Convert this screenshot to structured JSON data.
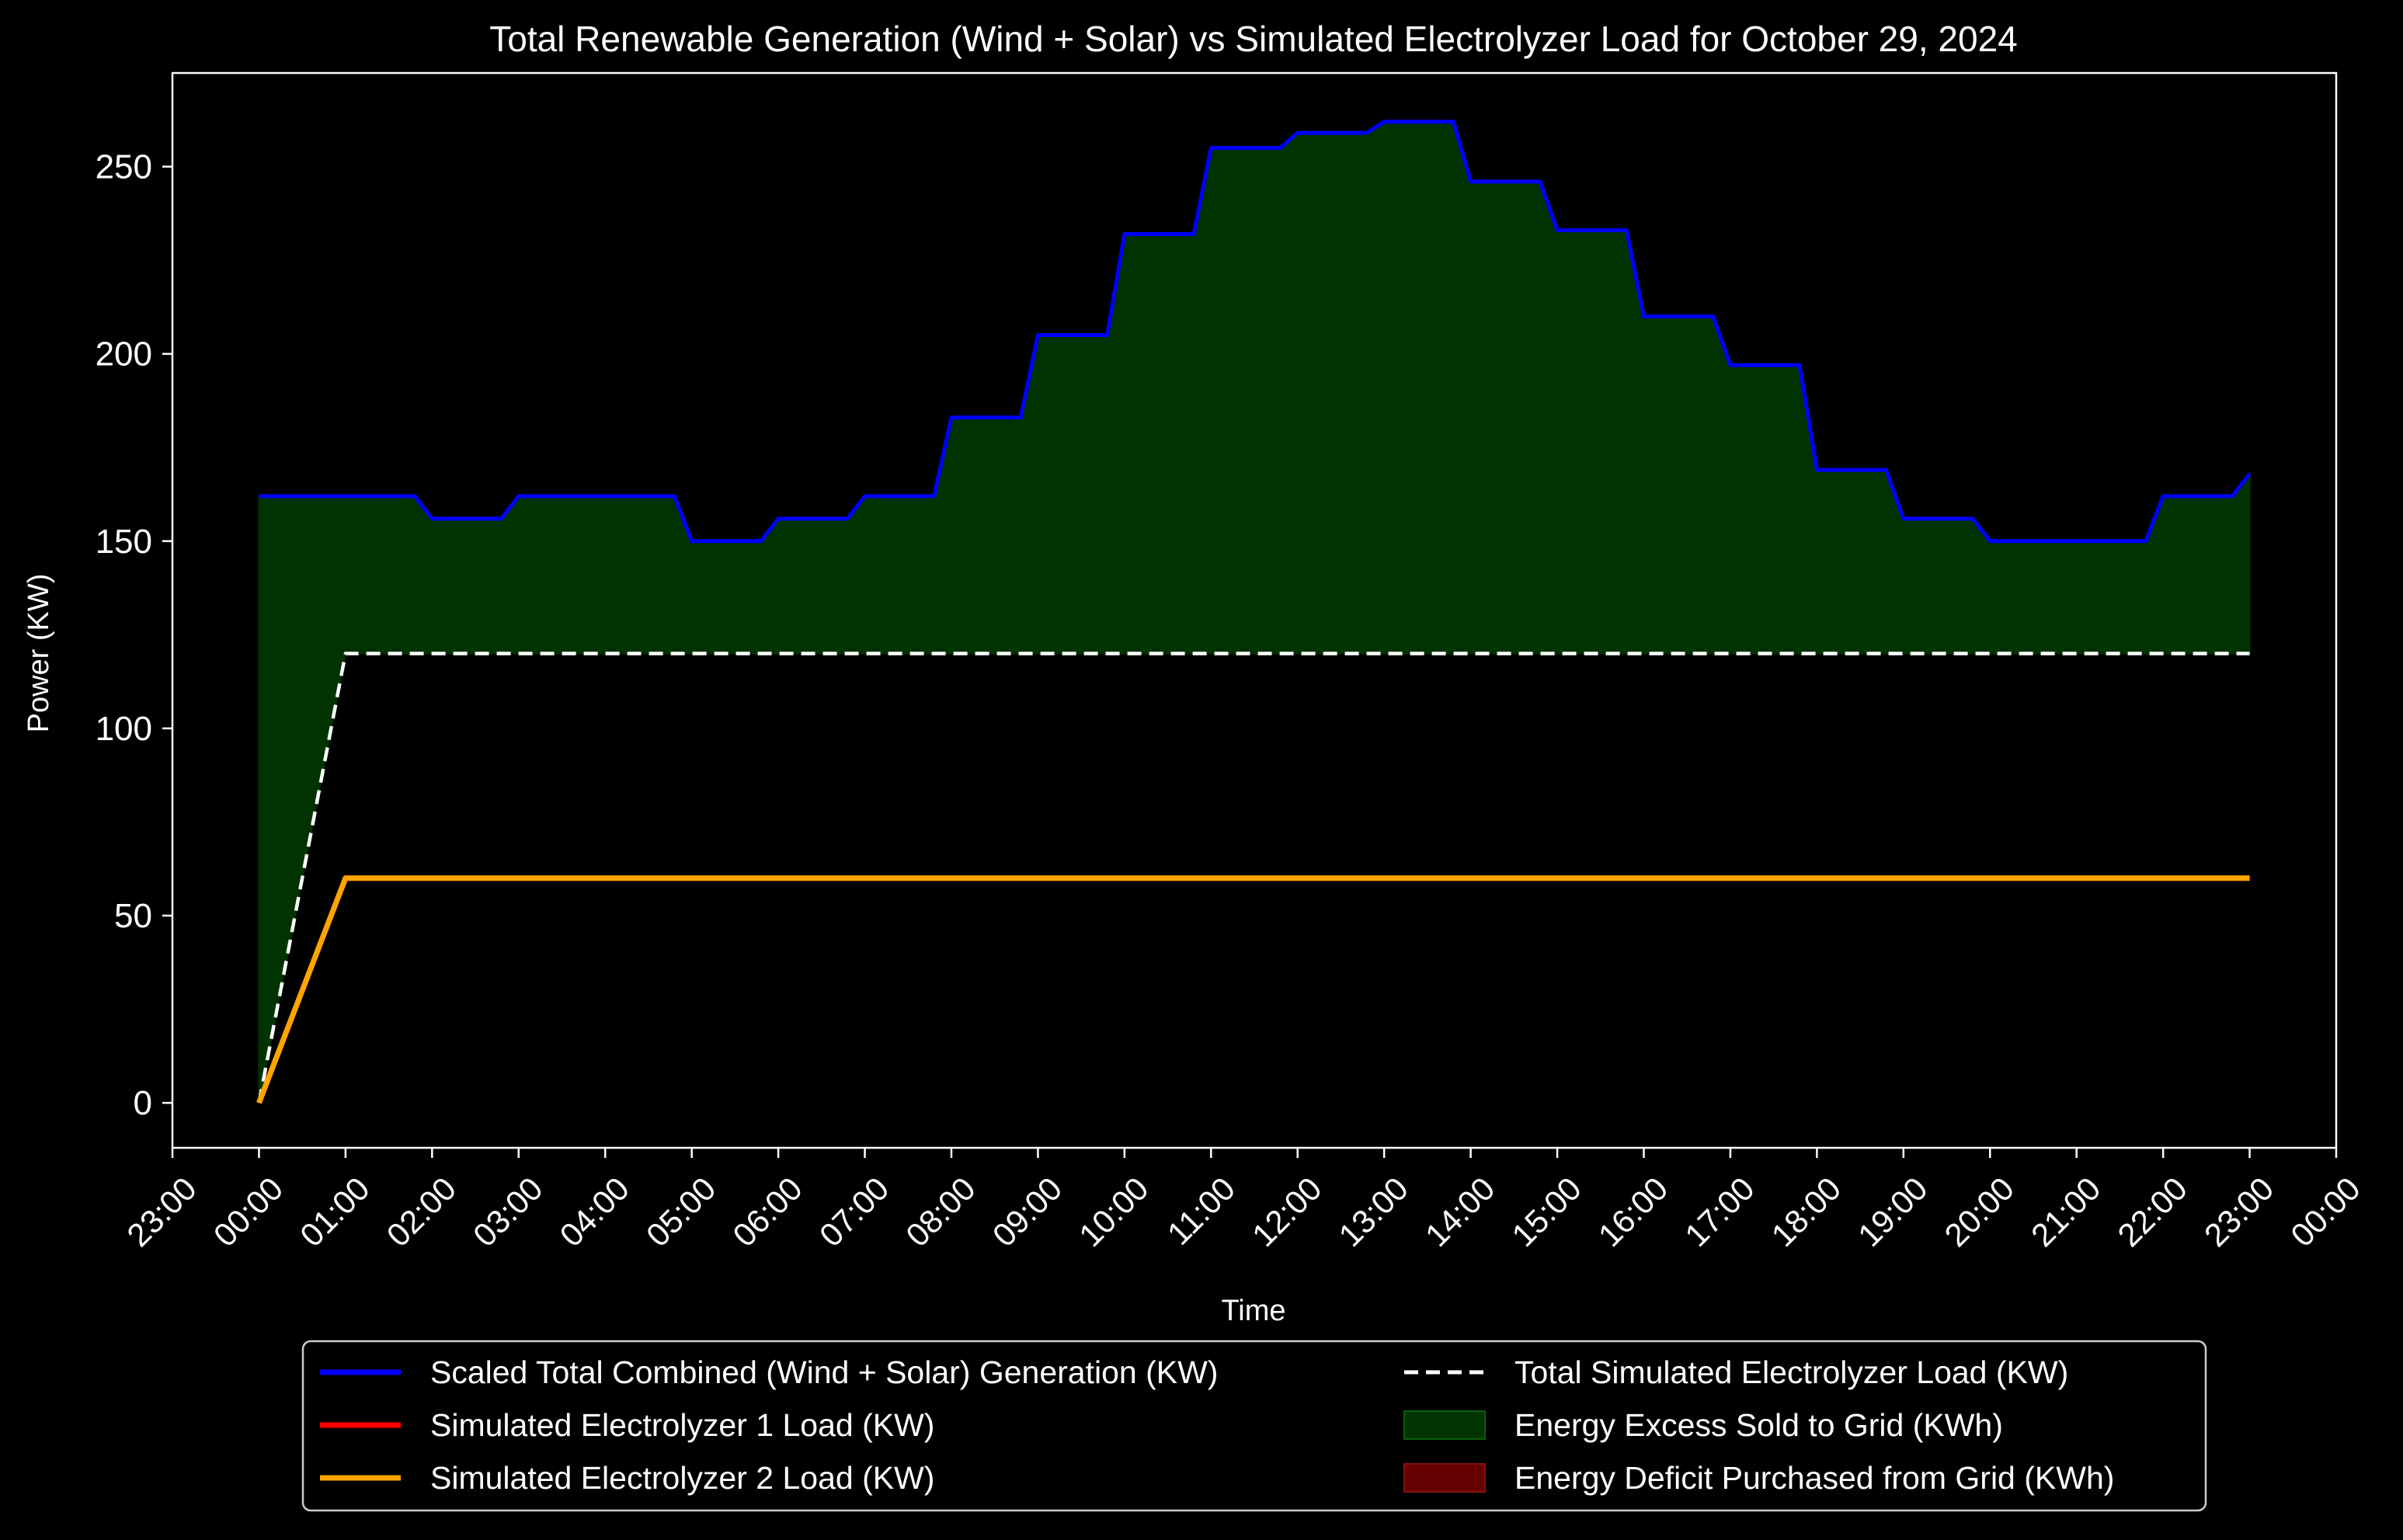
{
  "chart_data": {
    "type": "line",
    "title": "Total Renewable Generation (Wind + Solar) vs Simulated Electrolyzer Load for October 29, 2024",
    "xlabel": "Time",
    "ylabel": "Power (KW)",
    "x_unit": "hours",
    "xlim": [
      -1,
      24
    ],
    "ylim": [
      -12,
      275
    ],
    "x_ticks": [
      -1,
      0,
      1,
      2,
      3,
      4,
      5,
      6,
      7,
      8,
      9,
      10,
      11,
      12,
      13,
      14,
      15,
      16,
      17,
      18,
      19,
      20,
      21,
      22,
      23,
      24
    ],
    "x_tick_labels": [
      "23:00",
      "00:00",
      "01:00",
      "02:00",
      "03:00",
      "04:00",
      "05:00",
      "06:00",
      "07:00",
      "08:00",
      "09:00",
      "10:00",
      "11:00",
      "12:00",
      "13:00",
      "14:00",
      "15:00",
      "16:00",
      "17:00",
      "18:00",
      "19:00",
      "20:00",
      "21:00",
      "22:00",
      "23:00",
      "00:00"
    ],
    "y_ticks": [
      0,
      50,
      100,
      150,
      200,
      250
    ],
    "y_tick_labels": [
      "0",
      "50",
      "100",
      "150",
      "200",
      "250"
    ],
    "grid": false,
    "legend_position": "below",
    "background_color": "#000000",
    "series": [
      {
        "name": "Scaled Total Combined (Wind + Solar) Generation (KW)",
        "color": "#0000ff",
        "style": "solid",
        "x": [
          0,
          1.8,
          2,
          2.8,
          3,
          4.8,
          5,
          5.8,
          6,
          6.8,
          7,
          7.8,
          8,
          8.8,
          9,
          9.8,
          10,
          10.8,
          11,
          11.8,
          12,
          12.8,
          13,
          13.8,
          14,
          14.8,
          15,
          15.8,
          16,
          16.8,
          17,
          17.8,
          18,
          18.8,
          19,
          19.8,
          20,
          20.8,
          21,
          21.8,
          22,
          22.8,
          23
        ],
        "y": [
          162,
          162,
          156,
          156,
          162,
          162,
          150,
          150,
          156,
          156,
          162,
          162,
          183,
          183,
          205,
          205,
          232,
          232,
          255,
          255,
          259,
          259,
          262,
          262,
          246,
          246,
          233,
          233,
          210,
          210,
          197,
          197,
          169,
          169,
          156,
          156,
          150,
          150,
          150,
          150,
          162,
          162,
          168
        ]
      },
      {
        "name": "Total Simulated Electrolyzer Load (KW)",
        "color": "#ffffff",
        "style": "dashed",
        "x": [
          0,
          1,
          23
        ],
        "y": [
          0,
          120,
          120
        ]
      },
      {
        "name": "Simulated Electrolyzer 1 Load (KW)",
        "color": "#ff0000",
        "style": "solid",
        "x": [
          0,
          1,
          23
        ],
        "y": [
          0,
          60,
          60
        ]
      },
      {
        "name": "Simulated Electrolyzer 2 Load (KW)",
        "color": "#ffa500",
        "style": "solid",
        "x": [
          0,
          1,
          23
        ],
        "y": [
          0,
          60,
          60
        ]
      }
    ],
    "fills": [
      {
        "name": "Energy Excess Sold to Grid (KWh)",
        "color": "#003300",
        "between": [
          "Scaled Total Combined (Wind + Solar) Generation (KW)",
          "Total Simulated Electrolyzer Load (KW)"
        ]
      },
      {
        "name": "Energy Deficit Purchased from Grid (KWh)",
        "color": "#660000",
        "between": [
          "Total Simulated Electrolyzer Load (KW)",
          "Scaled Total Combined (Wind + Solar) Generation (KW)"
        ]
      }
    ],
    "legend": {
      "columns": 2,
      "entries": [
        {
          "label": "Scaled Total Combined (Wind + Solar) Generation (KW)",
          "kind": "line",
          "color": "#0000ff",
          "style": "solid"
        },
        {
          "label": "Total Simulated Electrolyzer Load (KW)",
          "kind": "line",
          "color": "#ffffff",
          "style": "dashed"
        },
        {
          "label": "Simulated Electrolyzer 1 Load (KW)",
          "kind": "line",
          "color": "#ff0000",
          "style": "solid"
        },
        {
          "label": "Energy Excess Sold to Grid (KWh)",
          "kind": "patch",
          "color": "#003300",
          "edge": "#0b5d0b"
        },
        {
          "label": "Simulated Electrolyzer 2 Load (KW)",
          "kind": "line",
          "color": "#ffa500",
          "style": "solid"
        },
        {
          "label": "Energy Deficit Purchased from Grid (KWh)",
          "kind": "patch",
          "color": "#660000",
          "edge": "#8b1010"
        }
      ]
    }
  }
}
